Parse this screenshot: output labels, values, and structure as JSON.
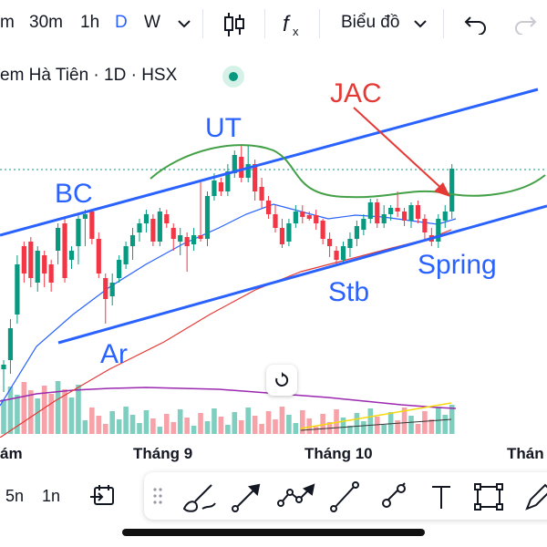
{
  "toolbar": {
    "intervals": [
      "m",
      "30m",
      "1h",
      "D",
      "W"
    ],
    "active_interval": "D",
    "interval_dropdown_icon": "chevron-down-icon",
    "candles_icon": "candlestick-icon",
    "indicators_icon": "fx-icon",
    "chart_menu_label": "Biểu đồ",
    "undo_icon": "undo-icon",
    "redo_icon": "redo-icon"
  },
  "symbol": {
    "label": "em Hà Tiên · 1D · HSX",
    "status_color": "#089981"
  },
  "annotations": {
    "jac": "JAC",
    "ut": "UT",
    "bc": "BC",
    "ar": "Ar",
    "stb": "Stb",
    "spring": "Spring"
  },
  "colors": {
    "up": "#089981",
    "down": "#f23645",
    "channel": "#2962ff",
    "arrow": "#e53935",
    "curve": "#43a047"
  },
  "xaxis": {
    "labels": [
      "ám",
      "Tháng 9",
      "Tháng 10",
      "Thán"
    ]
  },
  "bottom": {
    "range_5": "5n",
    "range_1": "1n",
    "goto_icon": "calendar-goto-icon"
  },
  "drawing_tools": [
    "drag-handle-icon",
    "brush-icon",
    "arrow-line-icon",
    "path-icon",
    "trend-line-icon",
    "ray-icon",
    "text-icon",
    "rectangle-icon",
    "pencil-icon"
  ],
  "chart_data": {
    "type": "candlestick",
    "note_free": true,
    "candles": [
      [
        400,
        405,
        395,
        430,
        "up"
      ],
      [
        360,
        395,
        350,
        410,
        "up"
      ],
      [
        290,
        345,
        280,
        355,
        "up"
      ],
      [
        300,
        270,
        265,
        310,
        "down"
      ],
      [
        265,
        305,
        260,
        315,
        "down"
      ],
      [
        310,
        275,
        270,
        320,
        "up"
      ],
      [
        280,
        300,
        275,
        315,
        "down"
      ],
      [
        290,
        310,
        285,
        320,
        "down"
      ],
      [
        275,
        250,
        245,
        290,
        "up"
      ],
      [
        245,
        305,
        240,
        310,
        "down"
      ],
      [
        285,
        275,
        270,
        295,
        "up"
      ],
      [
        270,
        240,
        235,
        290,
        "up"
      ],
      [
        240,
        235,
        230,
        270,
        "up"
      ],
      [
        232,
        262,
        230,
        268,
        "down"
      ],
      [
        262,
        300,
        255,
        305,
        "down"
      ],
      [
        305,
        328,
        300,
        355,
        "down"
      ],
      [
        325,
        310,
        300,
        335,
        "up"
      ],
      [
        305,
        285,
        280,
        310,
        "up"
      ],
      [
        290,
        270,
        265,
        295,
        "up"
      ],
      [
        270,
        258,
        250,
        285,
        "up"
      ],
      [
        255,
        245,
        240,
        265,
        "up"
      ],
      [
        245,
        235,
        230,
        255,
        "up"
      ],
      [
        240,
        265,
        235,
        270,
        "down"
      ],
      [
        265,
        232,
        228,
        270,
        "up"
      ],
      [
        235,
        245,
        230,
        250,
        "down"
      ],
      [
        250,
        262,
        245,
        275,
        "down"
      ],
      [
        265,
        258,
        250,
        280,
        "up"
      ],
      [
        260,
        270,
        255,
        298,
        "down"
      ],
      [
        268,
        258,
        250,
        275,
        "up"
      ],
      [
        258,
        262,
        200,
        265,
        "down"
      ],
      [
        262,
        215,
        210,
        270,
        "up"
      ],
      [
        215,
        198,
        190,
        220,
        "up"
      ],
      [
        200,
        210,
        195,
        215,
        "down"
      ],
      [
        210,
        188,
        180,
        215,
        "up"
      ],
      [
        190,
        170,
        165,
        195,
        "up"
      ],
      [
        172,
        195,
        160,
        200,
        "down"
      ],
      [
        195,
        180,
        160,
        200,
        "up"
      ],
      [
        180,
        210,
        175,
        220,
        "down"
      ],
      [
        205,
        220,
        195,
        228,
        "down"
      ],
      [
        220,
        235,
        215,
        240,
        "down"
      ],
      [
        235,
        250,
        225,
        255,
        "down"
      ],
      [
        250,
        268,
        240,
        272,
        "down"
      ],
      [
        265,
        245,
        240,
        270,
        "up"
      ],
      [
        245,
        232,
        225,
        250,
        "up"
      ],
      [
        232,
        238,
        225,
        245,
        "down"
      ],
      [
        240,
        236,
        232,
        242,
        "down"
      ],
      [
        236,
        245,
        230,
        252,
        "down"
      ],
      [
        242,
        262,
        240,
        268,
        "down"
      ],
      [
        262,
        270,
        255,
        282,
        "down"
      ],
      [
        275,
        285,
        270,
        292,
        "down"
      ],
      [
        285,
        270,
        265,
        290,
        "up"
      ],
      [
        272,
        262,
        255,
        282,
        "up"
      ],
      [
        262,
        248,
        242,
        270,
        "up"
      ],
      [
        252,
        240,
        235,
        258,
        "up"
      ],
      [
        240,
        222,
        218,
        245,
        "up"
      ],
      [
        222,
        245,
        218,
        250,
        "down"
      ],
      [
        245,
        235,
        225,
        250,
        "up"
      ],
      [
        235,
        228,
        225,
        242,
        "up"
      ],
      [
        228,
        232,
        210,
        238,
        "down"
      ],
      [
        232,
        242,
        228,
        248,
        "down"
      ],
      [
        242,
        225,
        222,
        250,
        "up"
      ],
      [
        225,
        240,
        220,
        245,
        "down"
      ],
      [
        240,
        255,
        235,
        265,
        "down"
      ],
      [
        258,
        265,
        250,
        270,
        "down"
      ],
      [
        265,
        240,
        235,
        272,
        "up"
      ],
      [
        242,
        232,
        225,
        250,
        "up"
      ],
      [
        232,
        185,
        180,
        240,
        "up"
      ]
    ]
  }
}
